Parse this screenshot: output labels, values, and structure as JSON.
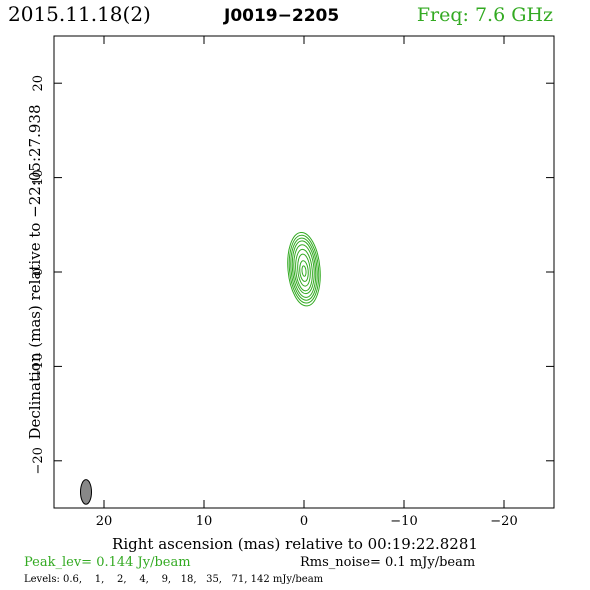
{
  "header": {
    "date": "2015.11.18(2)",
    "source": "J0019−2205",
    "freq": "Freq: 7.6 GHz"
  },
  "footer": {
    "peak": "Peak_lev=  0.144 Jy/beam",
    "rms": "Rms_noise=  0.1 mJy/beam",
    "levels": "Levels: 0.6,    1,    2,    4,    9,   18,   35,   71, 142 mJy/beam"
  },
  "colors": {
    "contour": "#33aa22",
    "beam_fill": "#888888",
    "frame": "#000000"
  },
  "chart_data": {
    "type": "contour",
    "xlabel": "Right ascension (mas) relative to 00:19:22.8281",
    "ylabel": "Declination (mas) relative to −22:05:27.938",
    "xlim": [
      25,
      -25
    ],
    "ylim": [
      -25,
      25
    ],
    "x_ticks": [
      20,
      10,
      0,
      -10,
      -20
    ],
    "y_ticks": [
      20,
      10,
      0,
      -10,
      -20
    ],
    "x_tick_labels": [
      "20",
      "10",
      "0",
      "−10",
      "−20"
    ],
    "y_tick_labels": [
      "20",
      "10",
      "0",
      "−10",
      "−20"
    ],
    "levels_mJy": [
      0.6,
      1,
      2,
      4,
      9,
      18,
      35,
      71,
      142
    ],
    "contours": [
      {
        "level": 0.6,
        "center": [
          0,
          0.3
        ],
        "semi_major": 3.9,
        "semi_minor": 1.6,
        "pa": 5
      },
      {
        "level": 1,
        "center": [
          0,
          0.3
        ],
        "semi_major": 3.6,
        "semi_minor": 1.45,
        "pa": 5
      },
      {
        "level": 2,
        "center": [
          0,
          0.3
        ],
        "semi_major": 3.3,
        "semi_minor": 1.3,
        "pa": 5
      },
      {
        "level": 4,
        "center": [
          0,
          0.3
        ],
        "semi_major": 3.0,
        "semi_minor": 1.15,
        "pa": 5
      },
      {
        "level": 9,
        "center": [
          0,
          0.3
        ],
        "semi_major": 2.6,
        "semi_minor": 1.0,
        "pa": 5
      },
      {
        "level": 18,
        "center": [
          0,
          0.2
        ],
        "semi_major": 2.2,
        "semi_minor": 0.82,
        "pa": 5
      },
      {
        "level": 35,
        "center": [
          0,
          0.2
        ],
        "semi_major": 1.7,
        "semi_minor": 0.62,
        "pa": 5
      },
      {
        "level": 71,
        "center": [
          0,
          0.1
        ],
        "semi_major": 1.1,
        "semi_minor": 0.42,
        "pa": 5
      },
      {
        "level": 142,
        "center": [
          0,
          0.1
        ],
        "semi_major": 0.55,
        "semi_minor": 0.2,
        "pa": 5
      }
    ],
    "beam": {
      "center": [
        21.8,
        -23.3
      ],
      "semi_major": 1.3,
      "semi_minor": 0.55,
      "pa": 0
    }
  }
}
